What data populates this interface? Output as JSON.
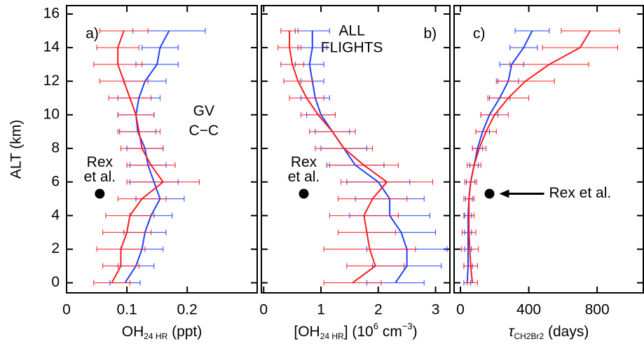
{
  "chart_data": [
    {
      "type": "line",
      "panel_label": "a)",
      "ylabel": "ALT (km)",
      "xlabel": [
        {
          "text": "OH"
        },
        {
          "text": "24 HR",
          "shift": "sub"
        },
        {
          "text": " (ppt)"
        }
      ],
      "y": [
        0,
        1,
        2,
        3,
        4,
        5,
        6,
        7,
        8,
        9,
        10,
        11,
        12,
        13,
        14,
        15
      ],
      "ylim": [
        -0.6,
        16.5
      ],
      "yticks": [
        0,
        2,
        4,
        6,
        8,
        10,
        12,
        14,
        16
      ],
      "xlim": [
        0,
        0.316
      ],
      "xticks": [
        0,
        0.1,
        0.2
      ],
      "series": [
        {
          "name": "GV",
          "color": "#1f3fff",
          "values": [
            0.097,
            0.115,
            0.125,
            0.13,
            0.14,
            0.155,
            0.145,
            0.135,
            0.13,
            0.118,
            0.115,
            0.12,
            0.13,
            0.15,
            0.155,
            0.17
          ],
          "errors": [
            0.025,
            0.03,
            0.035,
            0.035,
            0.035,
            0.04,
            0.04,
            0.03,
            0.03,
            0.03,
            0.03,
            0.035,
            0.035,
            0.035,
            0.03,
            0.06
          ]
        },
        {
          "name": "C−C",
          "color": "#ff1a1a",
          "values": [
            0.075,
            0.09,
            0.09,
            0.1,
            0.105,
            0.125,
            0.16,
            0.14,
            0.125,
            0.12,
            0.115,
            0.105,
            0.095,
            0.085,
            0.085,
            0.095
          ],
          "errors": [
            0.03,
            0.03,
            0.04,
            0.04,
            0.04,
            0.04,
            0.06,
            0.04,
            0.035,
            0.035,
            0.03,
            0.035,
            0.04,
            0.04,
            0.035,
            0.04
          ]
        }
      ],
      "annotation": {
        "text": [
          "Rex",
          "et al."
        ],
        "x": 0.055,
        "y": 5.3
      }
    },
    {
      "type": "line",
      "panel_label": "b)",
      "subtitle": [
        "ALL",
        "FLIGHTS"
      ],
      "xlabel": [
        {
          "text": "[OH"
        },
        {
          "text": "24 HR",
          "shift": "sub"
        },
        {
          "text": "] (10"
        },
        {
          "text": "6",
          "shift": "super"
        },
        {
          "text": " cm"
        },
        {
          "text": "−3",
          "shift": "super"
        },
        {
          "text": ")"
        }
      ],
      "y": [
        0,
        1,
        2,
        3,
        4,
        5,
        6,
        7,
        8,
        9,
        10,
        11,
        12,
        13,
        14,
        15
      ],
      "xlim": [
        -0.04,
        3.25
      ],
      "xticks": [
        0,
        1,
        2,
        3
      ],
      "series": [
        {
          "color": "#1f3fff",
          "values": [
            2.3,
            2.5,
            2.5,
            2.4,
            2.2,
            2.2,
            2.0,
            1.6,
            1.4,
            1.2,
            1.0,
            0.9,
            0.85,
            0.8,
            0.85,
            0.85
          ],
          "errors": [
            0.5,
            0.6,
            0.7,
            0.6,
            0.7,
            0.6,
            0.55,
            0.5,
            0.4,
            0.3,
            0.25,
            0.25,
            0.2,
            0.25,
            0.25,
            0.3
          ]
        },
        {
          "color": "#ff1a1a",
          "values": [
            1.55,
            1.95,
            1.85,
            1.8,
            1.75,
            1.9,
            2.15,
            1.75,
            1.4,
            1.2,
            0.95,
            0.75,
            0.6,
            0.5,
            0.45,
            0.45
          ],
          "errors": [
            0.5,
            0.5,
            0.8,
            0.5,
            0.6,
            0.6,
            0.8,
            0.6,
            0.5,
            0.4,
            0.3,
            0.3,
            0.25,
            0.2,
            0.2,
            0.15
          ]
        }
      ],
      "annotation": {
        "text": [
          "Rex",
          "et al."
        ],
        "x": 0.7,
        "y": 5.3
      }
    },
    {
      "type": "line",
      "panel_label": "c)",
      "xlabel": [
        {
          "text": "τ",
          "shift": "italic"
        },
        {
          "text": "CH2Br2",
          "shift": "sub"
        },
        {
          "text": " (days)"
        }
      ],
      "y": [
        0,
        1,
        2,
        3,
        4,
        5,
        6,
        7,
        8,
        9,
        10,
        11,
        12,
        13,
        14,
        15
      ],
      "xlim": [
        -37,
        1070
      ],
      "xticks": [
        0,
        400,
        800
      ],
      "series": [
        {
          "color": "#1f3fff",
          "values": [
            40,
            45,
            45,
            45,
            45,
            50,
            60,
            80,
            100,
            130,
            170,
            230,
            280,
            300,
            370,
            420
          ],
          "errors": [
            20,
            25,
            20,
            20,
            20,
            20,
            25,
            25,
            30,
            40,
            50,
            60,
            60,
            70,
            80,
            100
          ]
        },
        {
          "color": "#ff1a1a",
          "values": [
            70,
            60,
            55,
            50,
            50,
            50,
            60,
            80,
            110,
            150,
            200,
            280,
            380,
            520,
            700,
            760
          ],
          "errors": [
            30,
            40,
            50,
            40,
            30,
            30,
            35,
            40,
            40,
            60,
            80,
            120,
            170,
            230,
            220,
            170
          ]
        }
      ],
      "annotation": {
        "text": [
          "Rex et al."
        ],
        "x": 170,
        "y": 5.3
      }
    }
  ]
}
